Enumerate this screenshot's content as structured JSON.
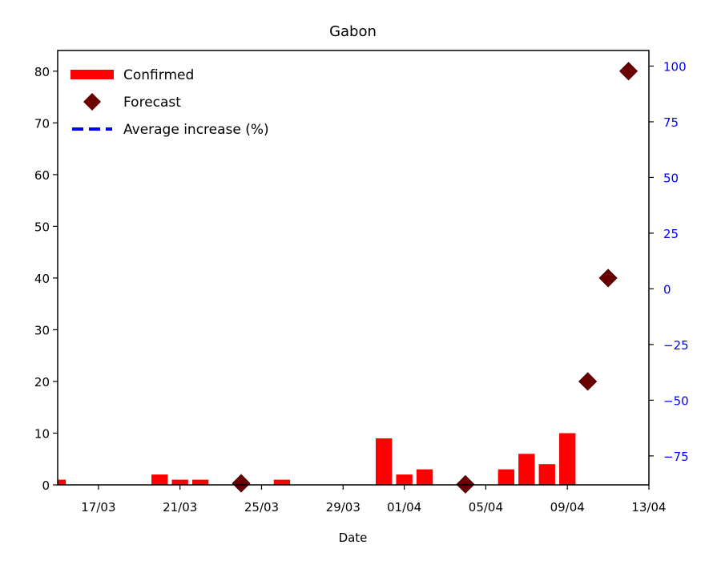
{
  "chart_data": {
    "type": "bar",
    "title": "Gabon",
    "xlabel": "Date",
    "ylabel": "",
    "y2label": "",
    "x_start": "15/03",
    "x_end": "13/04",
    "x_ticks": [
      "17/03",
      "21/03",
      "25/03",
      "29/03",
      "01/04",
      "05/04",
      "09/04",
      "13/04"
    ],
    "ylim": [
      0,
      84
    ],
    "y_ticks": [
      0,
      10,
      20,
      30,
      40,
      50,
      60,
      70,
      80
    ],
    "y2lim": [
      -88,
      107
    ],
    "y2_ticks": [
      -75,
      -50,
      -25,
      0,
      25,
      50,
      75,
      100
    ],
    "grid": false,
    "legend_position": "top-left",
    "series": [
      {
        "name": "Confirmed",
        "kind": "bar",
        "color": "#ff0000",
        "x": [
          "15/03",
          "20/03",
          "21/03",
          "22/03",
          "24/03",
          "26/03",
          "31/03",
          "01/04",
          "02/04",
          "06/04",
          "07/04",
          "08/04",
          "09/04"
        ],
        "values": [
          1,
          2,
          1,
          1,
          0.5,
          1,
          9,
          2,
          3,
          3,
          6,
          4,
          10
        ]
      },
      {
        "name": "Forecast",
        "kind": "scatter",
        "marker": "diamond",
        "color": "#6b0000",
        "x": [
          "24/03",
          "04/04",
          "10/04",
          "11/04",
          "12/04"
        ],
        "values": [
          0.3,
          0.1,
          20,
          40,
          80
        ]
      },
      {
        "name": "Average increase (%)",
        "kind": "line",
        "axis": "right",
        "style": "dashed",
        "color": "#0000ff",
        "x": [],
        "values": []
      }
    ],
    "right_axis_color": "#0000ff"
  }
}
